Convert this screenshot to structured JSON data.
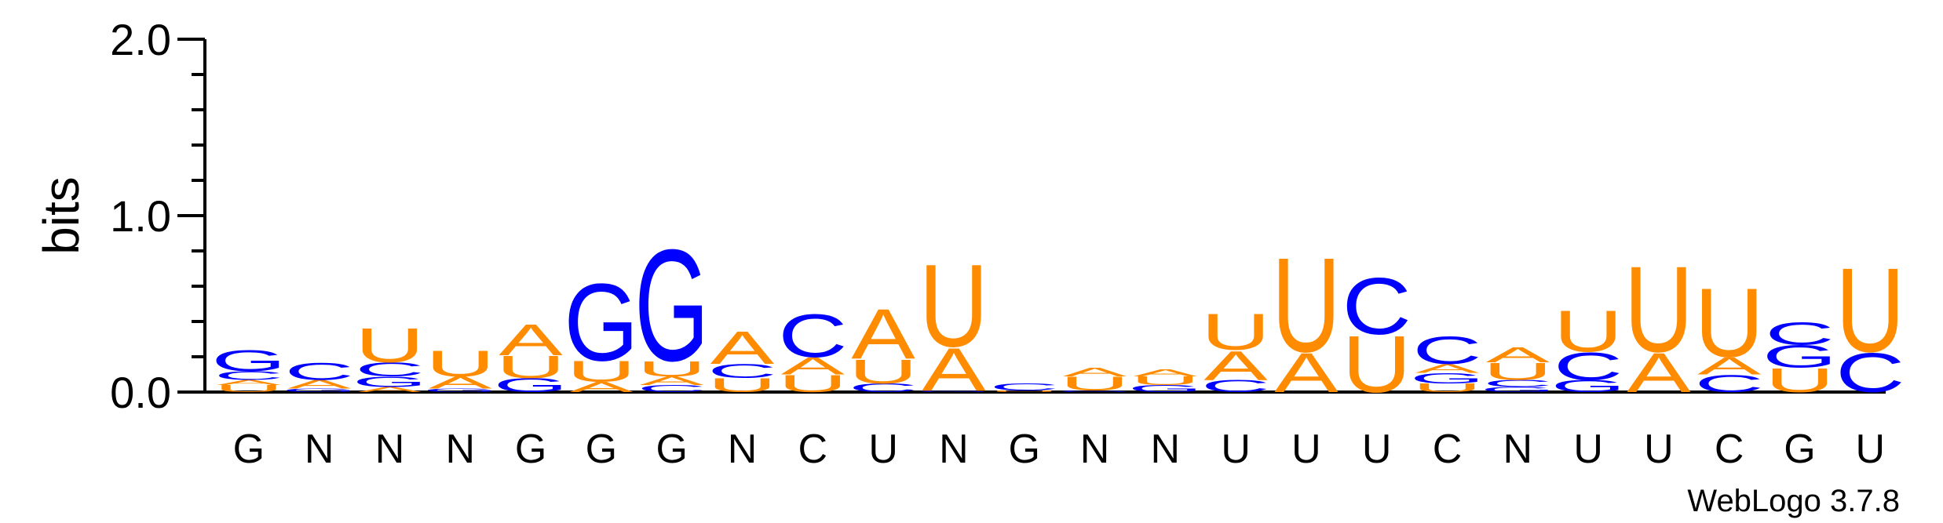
{
  "colors": {
    "A": "#FF8C00",
    "U": "#FF8C00",
    "C": "#0000FF",
    "G": "#0000FF",
    "axis": "#000000"
  },
  "chart_data": {
    "type": "sequence-logo",
    "ylabel": "bits",
    "ylim": [
      0,
      2
    ],
    "yticks": [
      "0.0",
      "1.0",
      "2.0"
    ],
    "credit": "WebLogo 3.7.8",
    "positions": [
      {
        "label": "G",
        "stack": [
          {
            "letter": "U",
            "height": 0.04
          },
          {
            "letter": "A",
            "height": 0.03
          },
          {
            "letter": "C",
            "height": 0.05
          },
          {
            "letter": "G",
            "height": 0.12
          }
        ]
      },
      {
        "label": "N",
        "stack": [
          {
            "letter": "G",
            "height": 0.02
          },
          {
            "letter": "A",
            "height": 0.05
          },
          {
            "letter": "C",
            "height": 0.1
          }
        ]
      },
      {
        "label": "N",
        "stack": [
          {
            "letter": "A",
            "height": 0.03
          },
          {
            "letter": "G",
            "height": 0.06
          },
          {
            "letter": "C",
            "height": 0.08
          },
          {
            "letter": "U",
            "height": 0.2
          }
        ]
      },
      {
        "label": "N",
        "stack": [
          {
            "letter": "G",
            "height": 0.02
          },
          {
            "letter": "A",
            "height": 0.07
          },
          {
            "letter": "U",
            "height": 0.15
          }
        ]
      },
      {
        "label": "G",
        "stack": [
          {
            "letter": "G",
            "height": 0.08
          },
          {
            "letter": "U",
            "height": 0.13
          },
          {
            "letter": "A",
            "height": 0.18
          }
        ]
      },
      {
        "label": "G",
        "stack": [
          {
            "letter": "A",
            "height": 0.06
          },
          {
            "letter": "U",
            "height": 0.12
          },
          {
            "letter": "G",
            "height": 0.45
          }
        ]
      },
      {
        "label": "G",
        "stack": [
          {
            "letter": "C",
            "height": 0.04
          },
          {
            "letter": "A",
            "height": 0.05
          },
          {
            "letter": "U",
            "height": 0.09
          },
          {
            "letter": "G",
            "height": 0.65
          }
        ]
      },
      {
        "label": "N",
        "stack": [
          {
            "letter": "U",
            "height": 0.08
          },
          {
            "letter": "C",
            "height": 0.08
          },
          {
            "letter": "A",
            "height": 0.19
          }
        ]
      },
      {
        "label": "C",
        "stack": [
          {
            "letter": "U",
            "height": 0.1
          },
          {
            "letter": "A",
            "height": 0.1
          },
          {
            "letter": "C",
            "height": 0.25
          }
        ]
      },
      {
        "label": "U",
        "stack": [
          {
            "letter": "C",
            "height": 0.05
          },
          {
            "letter": "U",
            "height": 0.14
          },
          {
            "letter": "A",
            "height": 0.29
          }
        ]
      },
      {
        "label": "N",
        "stack": [
          {
            "letter": "G",
            "height": 0.01
          },
          {
            "letter": "A",
            "height": 0.25
          },
          {
            "letter": "U",
            "height": 0.48
          }
        ]
      },
      {
        "label": "G",
        "stack": [
          {
            "letter": "U",
            "height": 0.01
          },
          {
            "letter": "C",
            "height": 0.04
          }
        ]
      },
      {
        "label": "N",
        "stack": [
          {
            "letter": "G",
            "height": 0.01
          },
          {
            "letter": "U",
            "height": 0.08
          },
          {
            "letter": "A",
            "height": 0.05
          }
        ]
      },
      {
        "label": "N",
        "stack": [
          {
            "letter": "G",
            "height": 0.04
          },
          {
            "letter": "U",
            "height": 0.05
          },
          {
            "letter": "A",
            "height": 0.04
          }
        ]
      },
      {
        "label": "U",
        "stack": [
          {
            "letter": "C",
            "height": 0.07
          },
          {
            "letter": "A",
            "height": 0.17
          },
          {
            "letter": "U",
            "height": 0.21
          }
        ]
      },
      {
        "label": "U",
        "stack": [
          {
            "letter": "A",
            "height": 0.23
          },
          {
            "letter": "U",
            "height": 0.55
          }
        ]
      },
      {
        "label": "U",
        "stack": [
          {
            "letter": "U",
            "height": 0.33
          },
          {
            "letter": "C",
            "height": 0.33
          }
        ]
      },
      {
        "label": "C",
        "stack": [
          {
            "letter": "U",
            "height": 0.05
          },
          {
            "letter": "G",
            "height": 0.06
          },
          {
            "letter": "A",
            "height": 0.05
          },
          {
            "letter": "C",
            "height": 0.16
          }
        ]
      },
      {
        "label": "N",
        "stack": [
          {
            "letter": "G",
            "height": 0.03
          },
          {
            "letter": "C",
            "height": 0.04
          },
          {
            "letter": "U",
            "height": 0.1
          },
          {
            "letter": "A",
            "height": 0.09
          }
        ]
      },
      {
        "label": "U",
        "stack": [
          {
            "letter": "G",
            "height": 0.07
          },
          {
            "letter": "C",
            "height": 0.16
          },
          {
            "letter": "U",
            "height": 0.24
          }
        ]
      },
      {
        "label": "U",
        "stack": [
          {
            "letter": "A",
            "height": 0.23
          },
          {
            "letter": "U",
            "height": 0.5
          }
        ]
      },
      {
        "label": "C",
        "stack": [
          {
            "letter": "C",
            "height": 0.1
          },
          {
            "letter": "A",
            "height": 0.1
          },
          {
            "letter": "U",
            "height": 0.4
          }
        ]
      },
      {
        "label": "G",
        "stack": [
          {
            "letter": "U",
            "height": 0.14
          },
          {
            "letter": "G",
            "height": 0.13
          },
          {
            "letter": "C",
            "height": 0.13
          }
        ]
      },
      {
        "label": "U",
        "stack": [
          {
            "letter": "C",
            "height": 0.23
          },
          {
            "letter": "U",
            "height": 0.49
          }
        ]
      }
    ]
  }
}
